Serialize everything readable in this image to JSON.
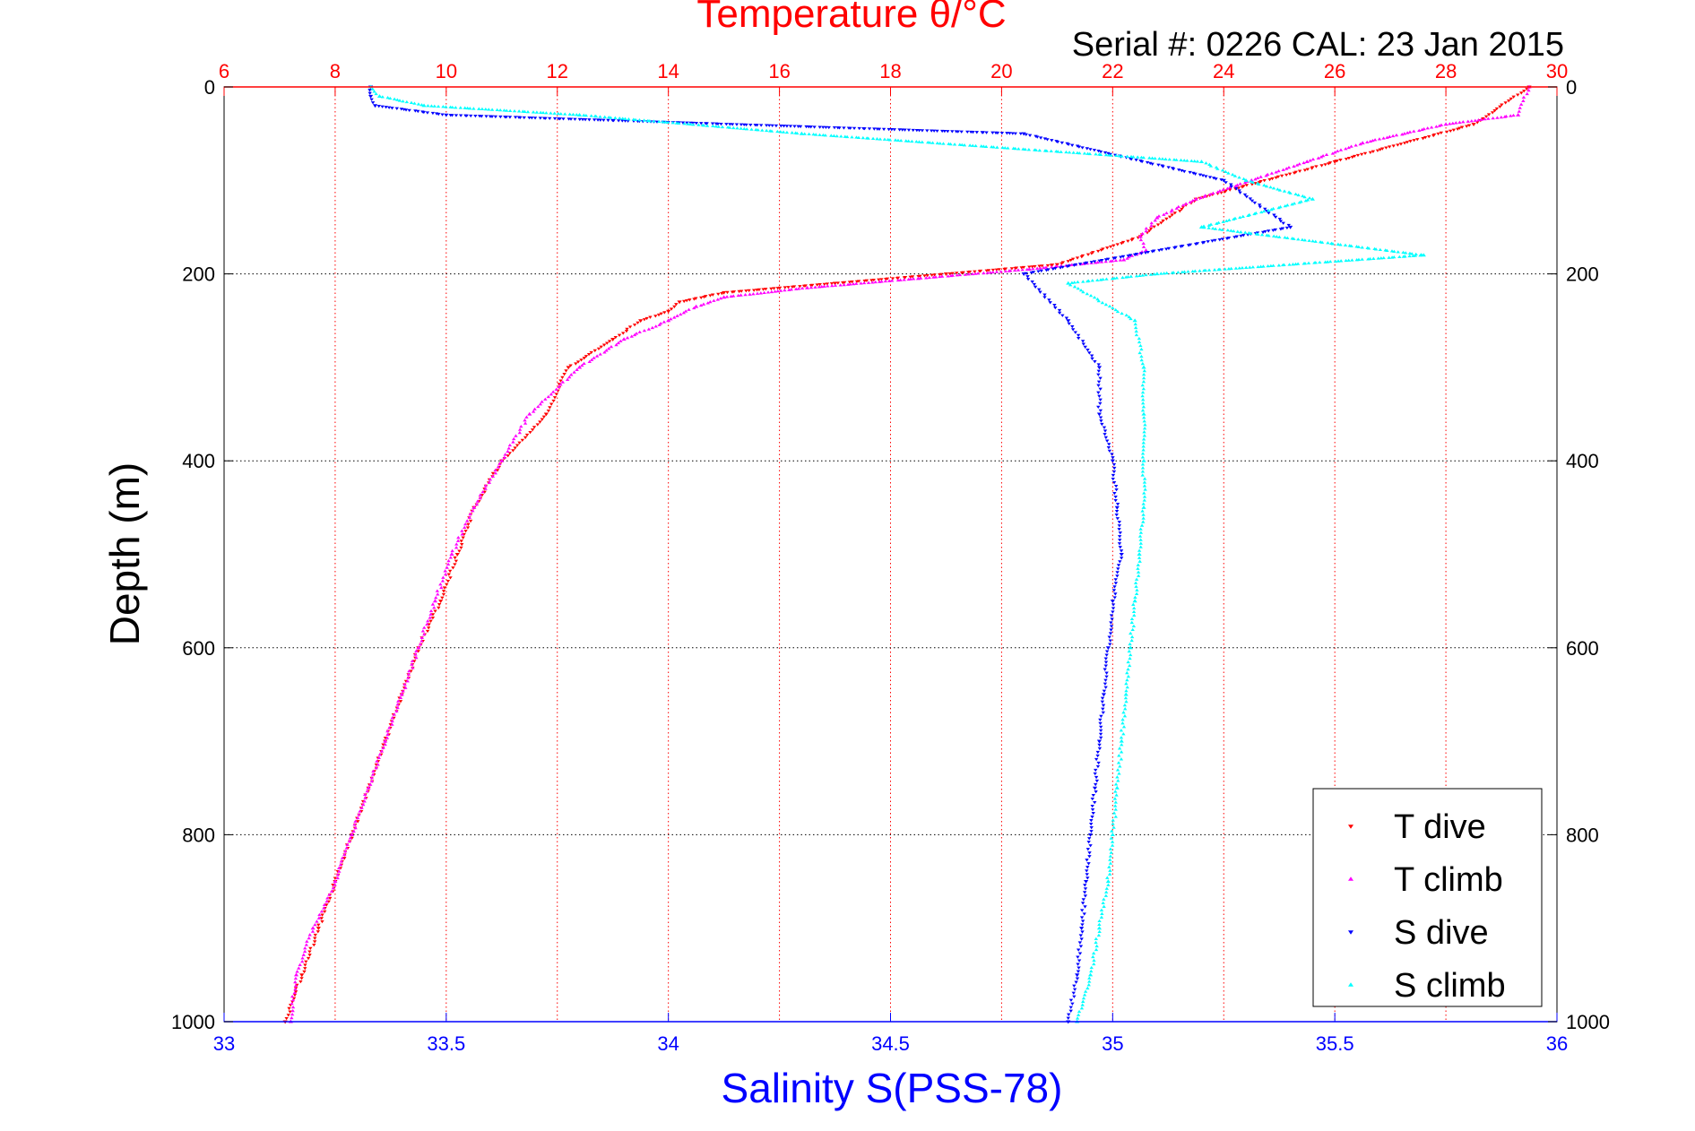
{
  "chart_data": {
    "type": "scatter",
    "title": "Temperature θ/°C",
    "subtitle": "Serial #: 0226  CAL: 23 Jan 2015",
    "xlabel": "Salinity S(PSS-78)",
    "ylabel": "Depth (m)",
    "x_bottom": {
      "lim": [
        33,
        36
      ],
      "ticks": [
        33,
        33.5,
        34,
        34.5,
        35,
        35.5,
        36
      ],
      "tick_labels": [
        "33",
        "33.5",
        "34",
        "34.5",
        "35",
        "35.5",
        "36"
      ]
    },
    "x_top": {
      "lim": [
        6,
        30
      ],
      "ticks": [
        6,
        8,
        10,
        12,
        14,
        16,
        18,
        20,
        22,
        24,
        26,
        28,
        30
      ],
      "tick_labels": [
        "6",
        "8",
        "10",
        "12",
        "14",
        "16",
        "18",
        "20",
        "22",
        "24",
        "26",
        "28",
        "30"
      ]
    },
    "y": {
      "lim": [
        0,
        1000
      ],
      "reversed": true,
      "ticks": [
        0,
        200,
        400,
        600,
        800,
        1000
      ],
      "tick_labels": [
        "0",
        "200",
        "400",
        "600",
        "800",
        "1000"
      ]
    },
    "grid": true,
    "legend_position": "bottom-right",
    "series": [
      {
        "name": "T dive",
        "axis": "top",
        "color": "#ff0000",
        "marker": "triangle-down",
        "depth": [
          0,
          40,
          80,
          120,
          160,
          190,
          200,
          210,
          220,
          230,
          240,
          250,
          270,
          300,
          350,
          400,
          450,
          500,
          550,
          600,
          650,
          700,
          750,
          800,
          850,
          900,
          950,
          1000
        ],
        "values": [
          29.5,
          28.5,
          26.0,
          23.5,
          22.5,
          21.0,
          19.0,
          17.0,
          15.0,
          14.2,
          14.0,
          13.5,
          13.0,
          12.2,
          11.8,
          11.0,
          10.5,
          10.2,
          9.9,
          9.5,
          9.2,
          8.9,
          8.6,
          8.3,
          8.0,
          7.7,
          7.4,
          7.1
        ]
      },
      {
        "name": "T climb",
        "axis": "top",
        "color": "#ff00ff",
        "marker": "triangle-up",
        "depth": [
          0,
          30,
          40,
          60,
          80,
          100,
          120,
          140,
          160,
          175,
          185,
          195,
          205,
          215,
          225,
          235,
          250,
          270,
          300,
          350,
          400,
          450,
          500,
          550,
          600,
          650,
          700,
          750,
          800,
          850,
          900,
          950,
          1000
        ],
        "values": [
          29.5,
          29.3,
          28.0,
          26.5,
          25.5,
          24.5,
          23.5,
          22.8,
          22.5,
          22.6,
          22.2,
          20.5,
          18.5,
          16.5,
          15.0,
          14.5,
          14.0,
          13.2,
          12.4,
          11.5,
          11.0,
          10.5,
          10.1,
          9.8,
          9.5,
          9.2,
          8.9,
          8.6,
          8.3,
          8.0,
          7.6,
          7.3,
          7.2
        ]
      },
      {
        "name": "S dive",
        "axis": "bottom",
        "color": "#0000ff",
        "marker": "triangle-down",
        "depth": [
          0,
          10,
          20,
          30,
          50,
          100,
          150,
          200,
          250,
          300,
          350,
          400,
          450,
          500,
          550,
          600,
          650,
          700,
          750,
          800,
          850,
          900,
          950,
          1000
        ],
        "values": [
          33.33,
          33.33,
          33.34,
          33.5,
          34.8,
          35.25,
          35.4,
          34.8,
          34.9,
          34.97,
          34.97,
          35.0,
          35.01,
          35.02,
          35.0,
          34.99,
          34.98,
          34.97,
          34.96,
          34.95,
          34.94,
          34.93,
          34.92,
          34.9
        ]
      },
      {
        "name": "S climb",
        "axis": "bottom",
        "color": "#00ffff",
        "marker": "triangle-up",
        "depth": [
          0,
          10,
          20,
          30,
          50,
          80,
          100,
          120,
          150,
          180,
          200,
          210,
          250,
          300,
          350,
          400,
          450,
          500,
          550,
          600,
          650,
          700,
          750,
          800,
          850,
          900,
          950,
          1000
        ],
        "values": [
          33.33,
          33.35,
          33.45,
          33.8,
          34.3,
          35.2,
          35.3,
          35.45,
          35.2,
          35.7,
          35.1,
          34.9,
          35.05,
          35.07,
          35.07,
          35.07,
          35.07,
          35.06,
          35.05,
          35.04,
          35.03,
          35.02,
          35.01,
          35.0,
          34.99,
          34.97,
          34.95,
          34.92
        ]
      }
    ]
  }
}
